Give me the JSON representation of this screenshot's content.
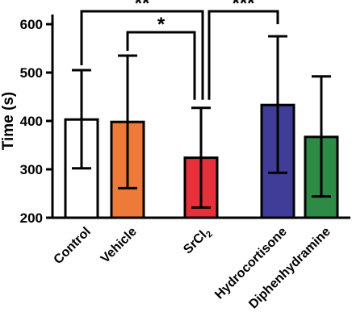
{
  "chart_data": {
    "type": "bar",
    "categories": [
      "Control",
      "Vehicle",
      "SrCl",
      "Hydrocortisone",
      "Diphenhydramine"
    ],
    "category_subscripts": [
      "",
      "",
      "2",
      "",
      ""
    ],
    "values": [
      403,
      398,
      324,
      433,
      367
    ],
    "error_upper": [
      505,
      535,
      427,
      575,
      492
    ],
    "error_lower": [
      302,
      261,
      221,
      293,
      244
    ],
    "bar_colors": [
      "#ffffff",
      "#ee7a3a",
      "#e8303b",
      "#3f3d97",
      "#2e8b45"
    ],
    "ylabel": "Time (s)",
    "xlabel": "",
    "ylim": [
      200,
      600
    ],
    "yticks": [
      200,
      300,
      400,
      500,
      600
    ],
    "grid": false,
    "significance": [
      {
        "from": "Control",
        "to": "SrCl",
        "label": "**"
      },
      {
        "from": "Vehicle",
        "to": "SrCl",
        "label": "*"
      },
      {
        "from": "SrCl",
        "to": "Hydrocortisone",
        "label": "***"
      }
    ]
  }
}
